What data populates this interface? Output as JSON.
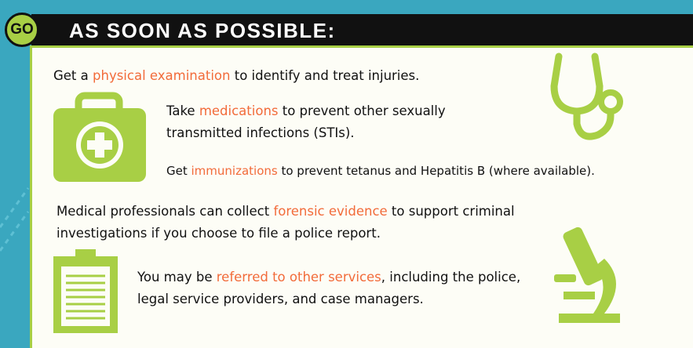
{
  "header": {
    "badge": "GO",
    "title": "AS SOON AS POSSIBLE:"
  },
  "items": [
    {
      "before": "Get a ",
      "highlight": "physical examination",
      "after": " to identify and treat injuries."
    },
    {
      "before": "Take ",
      "highlight": "medications",
      "after": " to prevent other sexually transmitted infections (STIs)."
    },
    {
      "before": "Get ",
      "highlight": "immunizations",
      "after": " to prevent tetanus and Hepatitis B (where available)."
    },
    {
      "before": "Medical professionals can collect ",
      "highlight": "forensic evidence",
      "after": " to support criminal investigations if you choose to file a police report."
    },
    {
      "before": "You may be ",
      "highlight": "referred to other services",
      "after": ", including the police, legal service providers, and case managers."
    }
  ]
}
